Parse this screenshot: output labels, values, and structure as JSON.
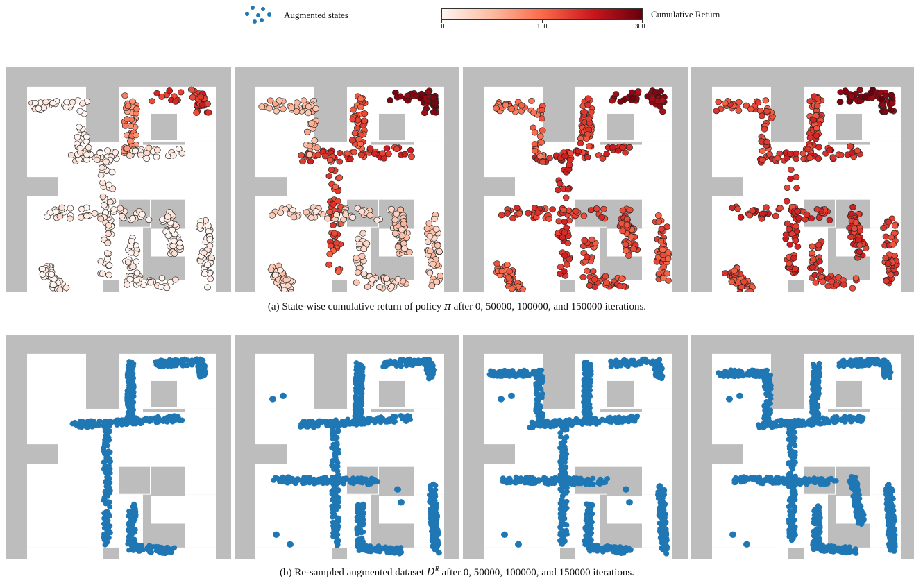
{
  "legend": {
    "augmented_label": "Augmented states",
    "augmented_icon": "scatter-dots-icon",
    "point_color": "#1f77b4"
  },
  "colorbar": {
    "title": "Cumulative Return",
    "ticks": [
      "0",
      "150",
      "300"
    ],
    "range": [
      0,
      300
    ],
    "colormap": "Reds",
    "colors": [
      "#fff5f0",
      "#fcbba1",
      "#fb6a4a",
      "#cb181d",
      "#67000d"
    ]
  },
  "captions": {
    "a_prefix": "(a)  State-wise cumulative return of policy ",
    "a_symbol": "π",
    "a_suffix": " after 0, 50000, 100000, and 150000 iterations.",
    "b_prefix": "(b)  Re-sampled augmented dataset ",
    "b_symbol": "D",
    "b_sup": "R",
    "b_suffix": " after 0, 50000, 100000, and 150000 iterations."
  },
  "chart_data": [
    {
      "type": "scatter",
      "panel_group": "a",
      "iterations": [
        0,
        50000,
        100000,
        150000
      ],
      "color_scale": "cumulative return (0–300)",
      "mean_return_by_region": [
        {
          "iteration": 0,
          "top_right_corridor": 200,
          "upper_vertical_arm": 120,
          "center_and_lower": 10
        },
        {
          "iteration": 50000,
          "top_right_corridor": 280,
          "upper_vertical_arm": 170,
          "center_and_lower": 100
        },
        {
          "iteration": 100000,
          "top_right_corridor": 270,
          "upper_vertical_arm": 180,
          "center_and_lower": 180
        },
        {
          "iteration": 150000,
          "top_right_corridor": 280,
          "upper_vertical_arm": 190,
          "center_and_lower": 190
        }
      ]
    },
    {
      "type": "scatter",
      "panel_group": "b",
      "iterations": [
        0,
        50000,
        100000,
        150000
      ],
      "series": "Augmented states",
      "color": "#1f77b4"
    }
  ]
}
